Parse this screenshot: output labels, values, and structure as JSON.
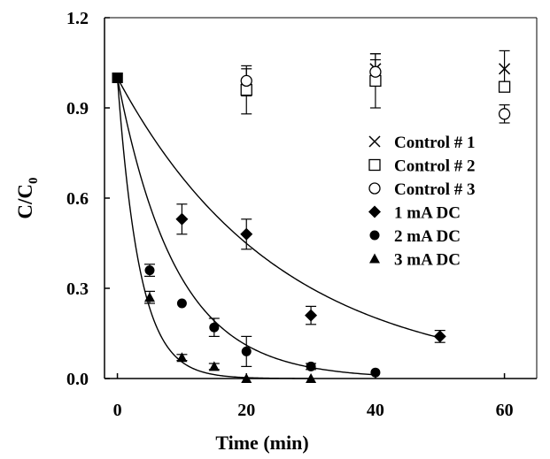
{
  "chart_data": {
    "type": "scatter",
    "title": "",
    "xlabel": "Time (min)",
    "ylabel_main": "C/C",
    "ylabel_sub": "0",
    "xlim": [
      -2,
      65
    ],
    "ylim": [
      0,
      1.2
    ],
    "x_ticks": [
      "0",
      "20",
      "40",
      "60"
    ],
    "x_tick_values": [
      0,
      20,
      40,
      60
    ],
    "y_ticks": [
      "0.0",
      "0.3",
      "0.6",
      "0.9",
      "1.2"
    ],
    "y_tick_values": [
      0.0,
      0.3,
      0.6,
      0.9,
      1.2
    ],
    "grid": false,
    "legend_position": "right",
    "series": [
      {
        "name": "Control # 1",
        "marker": "x",
        "points": [
          {
            "x": 0,
            "y": 1.0
          },
          {
            "x": 20,
            "y": 0.96,
            "err": 0.08
          },
          {
            "x": 40,
            "y": 1.03,
            "err": 0.05
          },
          {
            "x": 60,
            "y": 1.03,
            "err": 0.06
          }
        ]
      },
      {
        "name": "Control # 2",
        "marker": "square",
        "points": [
          {
            "x": 0,
            "y": 1.0
          },
          {
            "x": 20,
            "y": 0.96,
            "err": 0.02
          },
          {
            "x": 40,
            "y": 0.99,
            "err": 0.09
          },
          {
            "x": 60,
            "y": 0.97,
            "err": 0.01
          }
        ]
      },
      {
        "name": "Control # 3",
        "marker": "circle-open",
        "points": [
          {
            "x": 0,
            "y": 1.0
          },
          {
            "x": 20,
            "y": 0.99,
            "err": 0.04
          },
          {
            "x": 40,
            "y": 1.02,
            "err": 0.04
          },
          {
            "x": 60,
            "y": 0.88,
            "err": 0.03
          }
        ]
      },
      {
        "name": "1 mA DC",
        "marker": "diamond",
        "points": [
          {
            "x": 0,
            "y": 1.0
          },
          {
            "x": 10,
            "y": 0.53,
            "err": 0.05
          },
          {
            "x": 20,
            "y": 0.48,
            "err": 0.05
          },
          {
            "x": 30,
            "y": 0.21,
            "err": 0.03
          },
          {
            "x": 50,
            "y": 0.14,
            "err": 0.02
          }
        ]
      },
      {
        "name": "2 mA DC",
        "marker": "circle-filled",
        "points": [
          {
            "x": 0,
            "y": 1.0
          },
          {
            "x": 5,
            "y": 0.36,
            "err": 0.02
          },
          {
            "x": 10,
            "y": 0.25,
            "err": 0.0
          },
          {
            "x": 15,
            "y": 0.17,
            "err": 0.03
          },
          {
            "x": 20,
            "y": 0.09,
            "err": 0.05
          },
          {
            "x": 30,
            "y": 0.04,
            "err": 0.01
          },
          {
            "x": 40,
            "y": 0.02,
            "err": 0.0
          }
        ]
      },
      {
        "name": "3 mA DC",
        "marker": "triangle",
        "points": [
          {
            "x": 0,
            "y": 1.0
          },
          {
            "x": 5,
            "y": 0.27,
            "err": 0.02
          },
          {
            "x": 10,
            "y": 0.07,
            "err": 0.01
          },
          {
            "x": 15,
            "y": 0.04,
            "err": 0.01
          },
          {
            "x": 20,
            "y": 0.0
          },
          {
            "x": 30,
            "y": 0.0
          }
        ]
      }
    ],
    "fit_curves": [
      {
        "series": "1 mA DC",
        "equation": "exp(-k t)",
        "k": 0.04,
        "x_range": [
          0,
          50
        ]
      },
      {
        "series": "2 mA DC",
        "equation": "exp(-k t)",
        "k": 0.11,
        "x_range": [
          0,
          40
        ]
      },
      {
        "series": "3 mA DC",
        "equation": "exp(-k t)",
        "k": 0.29,
        "x_range": [
          0,
          30
        ]
      }
    ]
  }
}
